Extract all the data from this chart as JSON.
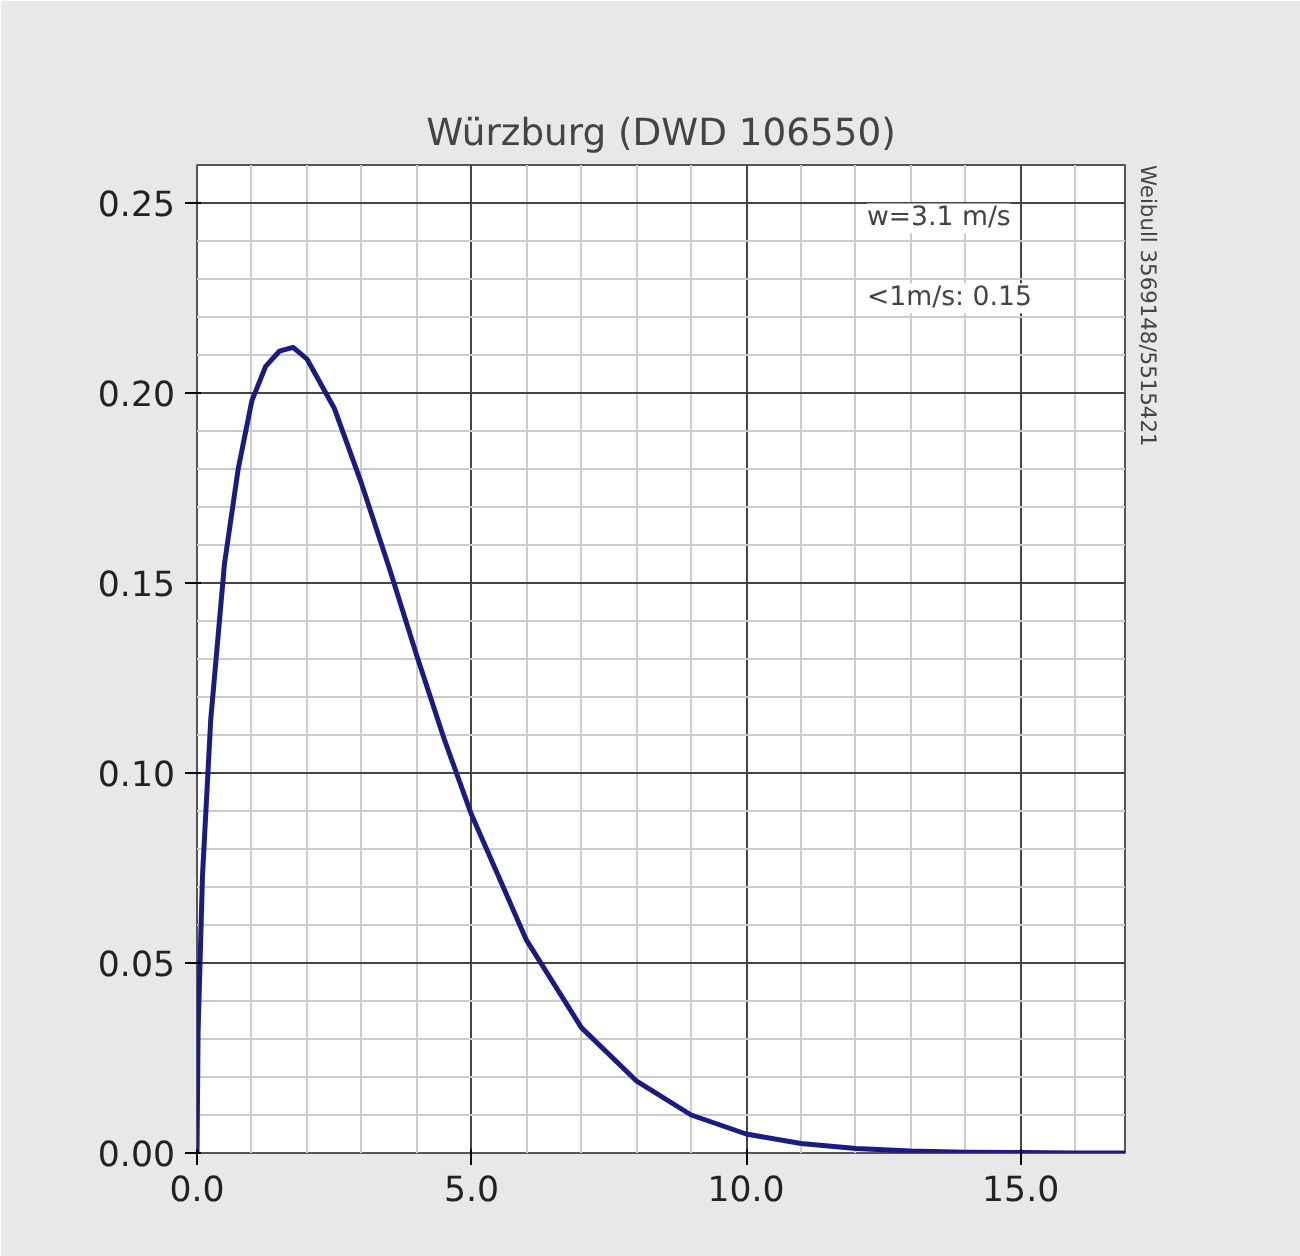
{
  "chart_data": {
    "type": "line",
    "title": "Würzburg (DWD 106550)",
    "x": [
      0,
      0.02,
      0.1,
      0.25,
      0.5,
      0.75,
      1.0,
      1.25,
      1.5,
      1.75,
      2.0,
      2.5,
      3.0,
      3.5,
      4.0,
      4.5,
      5.0,
      6.0,
      7.0,
      8.0,
      9.0,
      10.0,
      11.0,
      12.0,
      13.0,
      14.0,
      15.0,
      16.0,
      16.9
    ],
    "series": [
      {
        "color": "#1c1c80",
        "values": [
          0,
          0.032,
          0.073,
          0.114,
          0.155,
          0.18,
          0.198,
          0.207,
          0.211,
          0.212,
          0.209,
          0.196,
          0.176,
          0.154,
          0.131,
          0.109,
          0.089,
          0.056,
          0.033,
          0.019,
          0.01,
          0.005,
          0.0025,
          0.0012,
          0.0005,
          0.0002,
          0.0001,
          0,
          0
        ]
      }
    ],
    "xlim": [
      0,
      16.9
    ],
    "ylim": [
      0,
      0.26
    ],
    "xticks": [
      {
        "value": 0,
        "label": "0.0"
      },
      {
        "value": 5,
        "label": "5.0"
      },
      {
        "value": 10,
        "label": "10.0"
      },
      {
        "value": 15,
        "label": "15.0"
      }
    ],
    "yticks": [
      {
        "value": 0,
        "label": "0.00"
      },
      {
        "value": 0.05,
        "label": "0.05"
      },
      {
        "value": 0.1,
        "label": "0.10"
      },
      {
        "value": 0.15,
        "label": "0.15"
      },
      {
        "value": 0.2,
        "label": "0.20"
      },
      {
        "value": 0.25,
        "label": "0.25"
      }
    ],
    "grid": true,
    "marker": "none",
    "line_style": "solid",
    "annotations": [
      "w=3.1 m/s",
      "<1m/s: 0.15",
      "Weibull 3569148/5515421"
    ]
  }
}
